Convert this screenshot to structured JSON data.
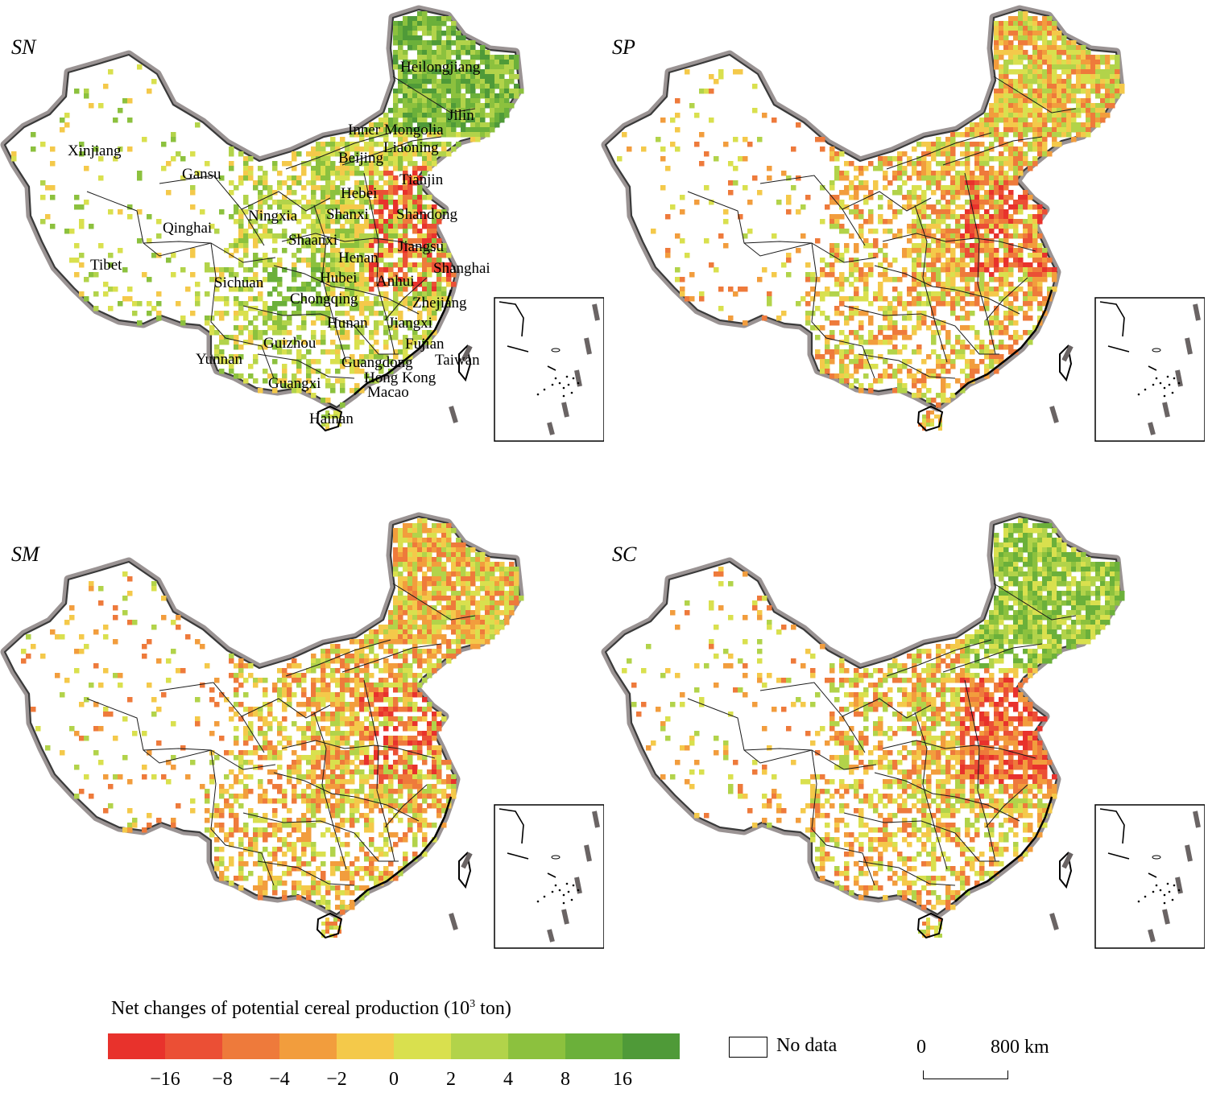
{
  "panels": [
    {
      "id": "SN",
      "label": "SN",
      "scheme": "green"
    },
    {
      "id": "SP",
      "label": "SP",
      "scheme": "mixed"
    },
    {
      "id": "SM",
      "label": "SM",
      "scheme": "mixed"
    },
    {
      "id": "SC",
      "label": "SC",
      "scheme": "orange"
    }
  ],
  "provinces": [
    {
      "name": "Heilongjiang"
    },
    {
      "name": "Jilin"
    },
    {
      "name": "Inner Mongolia"
    },
    {
      "name": "Liaoning"
    },
    {
      "name": "Xinjiang"
    },
    {
      "name": "Gansu"
    },
    {
      "name": "Beijing"
    },
    {
      "name": "Tianjin"
    },
    {
      "name": "Hebei"
    },
    {
      "name": "Ningxia"
    },
    {
      "name": "Shanxi"
    },
    {
      "name": "Shandong"
    },
    {
      "name": "Qinghai"
    },
    {
      "name": "Shaanxi"
    },
    {
      "name": "Jiangsu"
    },
    {
      "name": "Tibet"
    },
    {
      "name": "Henan"
    },
    {
      "name": "Shanghai"
    },
    {
      "name": "Sichuan"
    },
    {
      "name": "Hubei"
    },
    {
      "name": "Anhui"
    },
    {
      "name": "Chongqing"
    },
    {
      "name": "Zhejiang"
    },
    {
      "name": "Hunan"
    },
    {
      "name": "Jiangxi"
    },
    {
      "name": "Guizhou"
    },
    {
      "name": "Fujian"
    },
    {
      "name": "Yunnan"
    },
    {
      "name": "Taiwan"
    },
    {
      "name": "Guangdong"
    },
    {
      "name": "Hong Kong"
    },
    {
      "name": "Guangxi"
    },
    {
      "name": "Macao"
    },
    {
      "name": "Hainan"
    }
  ],
  "legend": {
    "title": "Net changes of potential cereal production (10",
    "title_sup": "3",
    "title_unit": " ton)",
    "colors": [
      "#e8322c",
      "#eb4f35",
      "#ee7a3b",
      "#f29d3d",
      "#f4c94a",
      "#d9e04e",
      "#b2d34a",
      "#8cc13e",
      "#6bb03a",
      "#4f9a38"
    ],
    "ticks": [
      "−16",
      "−8",
      "−4",
      "−2",
      "0",
      "2",
      "4",
      "8",
      "16"
    ],
    "no_data_label": "No data"
  },
  "scale_bar": {
    "start": "0",
    "end": "800 km"
  }
}
